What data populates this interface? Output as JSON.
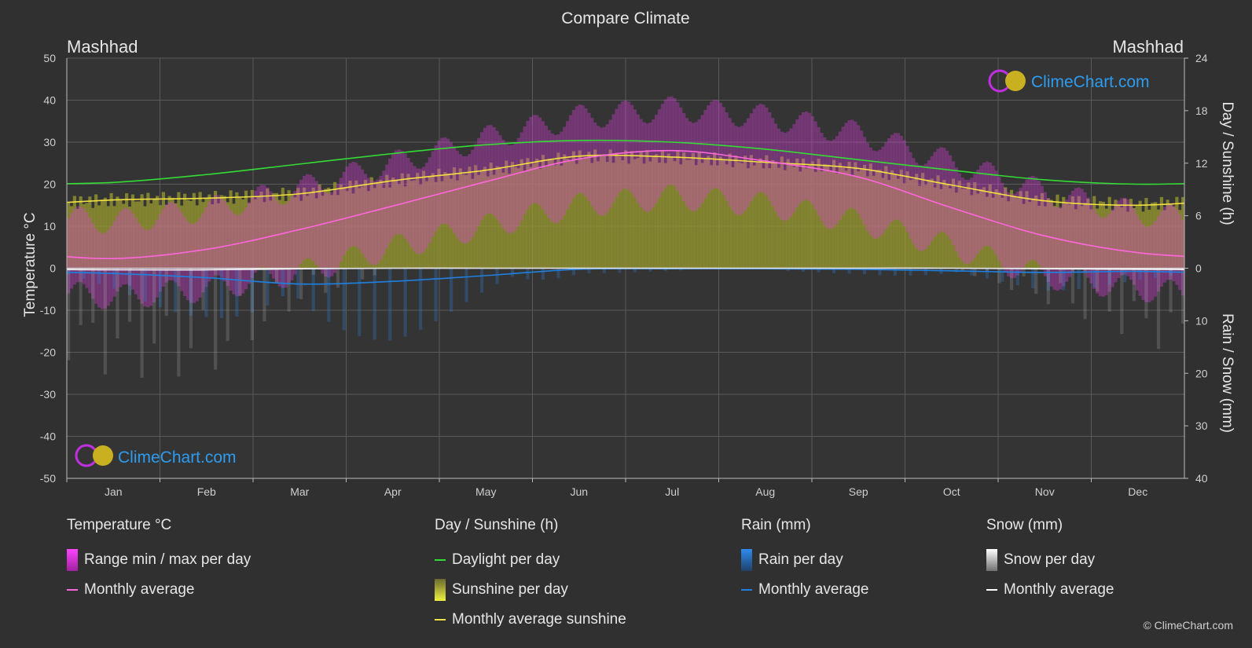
{
  "title": "Compare Climate",
  "location_left": "Mashhad",
  "location_right": "Mashhad",
  "watermark": "ClimeChart.com",
  "copyright": "© ClimeChart.com",
  "legend": {
    "temperature": {
      "header": "Temperature °C",
      "range": "Range min / max per day",
      "avg": "Monthly average"
    },
    "sunshine": {
      "header": "Day / Sunshine (h)",
      "daylight": "Daylight per day",
      "sunshine": "Sunshine per day",
      "avg": "Monthly average sunshine"
    },
    "rain": {
      "header": "Rain (mm)",
      "per_day": "Rain per day",
      "avg": "Monthly average"
    },
    "snow": {
      "header": "Snow (mm)",
      "per_day": "Snow per day",
      "avg": "Monthly average"
    }
  },
  "colors": {
    "temp_range": "#e040e0",
    "temp_avg": "#ff66dd",
    "daylight": "#33dd33",
    "sunshine_fill": "#9a9a30",
    "sunshine_avg": "#f0e040",
    "rain": "#2d8cf0",
    "rain_avg": "#1e80e0",
    "snow": "#bbbbbb",
    "snow_avg": "#ffffff",
    "background": "#303030",
    "grid": "#5a5a5a"
  },
  "chart_data": {
    "type": "area",
    "x_categories": [
      "Jan",
      "Feb",
      "Mar",
      "Apr",
      "May",
      "Jun",
      "Jul",
      "Aug",
      "Sep",
      "Oct",
      "Nov",
      "Dec"
    ],
    "y_left": {
      "label": "Temperature °C",
      "range": [
        -50,
        50
      ],
      "ticks": [
        50,
        40,
        30,
        20,
        10,
        0,
        -10,
        -20,
        -30,
        -40,
        -50
      ]
    },
    "y_right_top": {
      "label": "Day / Sunshine (h)",
      "range": [
        0,
        24
      ],
      "ticks": [
        24,
        18,
        12,
        6,
        0
      ]
    },
    "y_right_bottom": {
      "label": "Rain / Snow (mm)",
      "range": [
        0,
        40
      ],
      "ticks": [
        0,
        10,
        20,
        30,
        40
      ]
    },
    "series": [
      {
        "name": "Daylight per day",
        "unit": "h",
        "values": [
          9.8,
          10.7,
          11.9,
          13.1,
          14.1,
          14.6,
          14.4,
          13.6,
          12.4,
          11.2,
          10.1,
          9.6
        ]
      },
      {
        "name": "Monthly average sunshine",
        "unit": "h",
        "values": [
          7.8,
          8.0,
          8.5,
          10.0,
          11.2,
          12.8,
          12.7,
          12.1,
          11.4,
          9.5,
          7.7,
          7.2
        ]
      },
      {
        "name": "Temperature monthly average",
        "unit": "°C",
        "values": [
          2.3,
          4.5,
          9.2,
          14.8,
          20.6,
          26.0,
          28.0,
          25.5,
          21.7,
          14.4,
          7.7,
          3.7
        ]
      },
      {
        "name": "Temperature daily max (avg)",
        "unit": "°C",
        "values": [
          8,
          11,
          16,
          22,
          28,
          33,
          35,
          33,
          29,
          22,
          15,
          10
        ]
      },
      {
        "name": "Temperature daily min (avg)",
        "unit": "°C",
        "values": [
          -4,
          -2,
          2,
          8,
          13,
          18,
          20,
          18,
          14,
          8,
          1,
          -2
        ]
      },
      {
        "name": "Rain monthly average",
        "unit": "mm",
        "values": [
          1.0,
          1.8,
          3.0,
          2.5,
          1.4,
          0.2,
          0.1,
          0.1,
          0.2,
          0.5,
          0.8,
          0.6
        ]
      },
      {
        "name": "Snow monthly average",
        "unit": "mm",
        "values": [
          0.3,
          0.3,
          0.1,
          0,
          0,
          0,
          0,
          0,
          0,
          0,
          0.1,
          0.2
        ]
      }
    ]
  }
}
